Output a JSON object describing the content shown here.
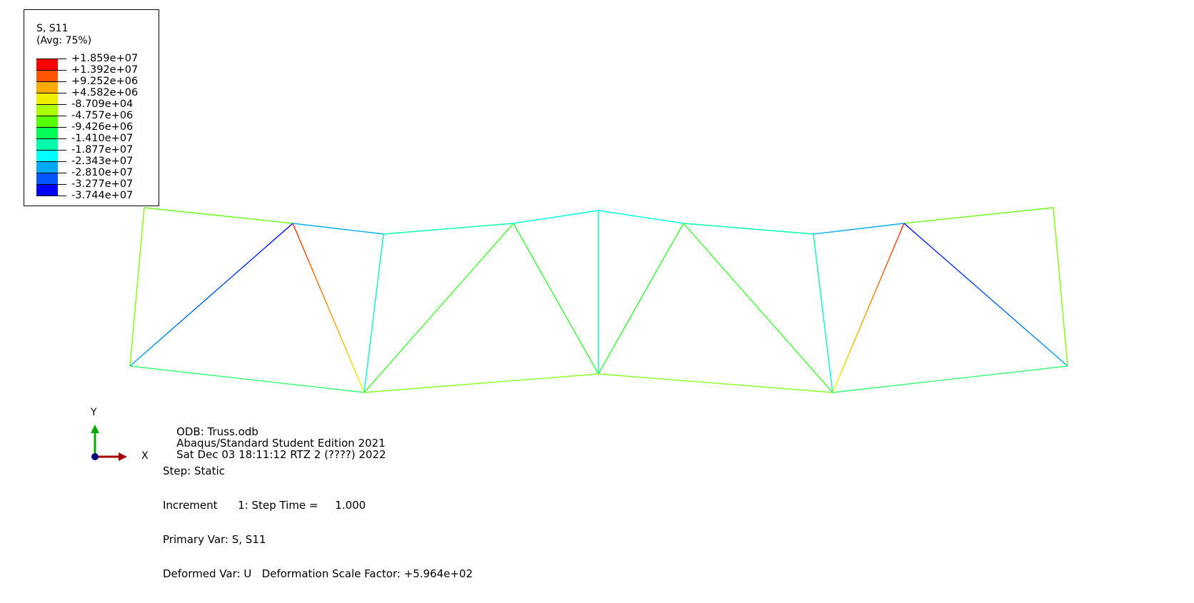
{
  "legend": {
    "title": "S, S11",
    "subtitle": "(Avg: 75%)",
    "labels": [
      "+1.859e+07",
      "+1.392e+07",
      "+9.252e+06",
      "+4.582e+06",
      "-8.709e+04",
      "-4.757e+06",
      "-9.426e+06",
      "-1.410e+07",
      "-1.877e+07",
      "-2.343e+07",
      "-2.810e+07",
      "-3.277e+07",
      "-3.744e+07"
    ],
    "colors": [
      "#ff0000",
      "#ff5500",
      "#ffaa00",
      "#eeee00",
      "#aaff00",
      "#55ff00",
      "#00ff55",
      "#00ffaa",
      "#00ffff",
      "#00aaff",
      "#0055ff",
      "#0000ff"
    ]
  },
  "triad": {
    "y_label": "Y",
    "x_label": "X",
    "colors": {
      "y": "#00aa00",
      "x": "#aa0000",
      "origin": "#000080"
    }
  },
  "info": {
    "odb": "ODB: Truss.odb",
    "edition": "Abaqus/Standard Student Edition 2021",
    "date": "Sat Dec 03 18:11:12 RTZ 2 (????) 2022",
    "step": "Step: Static",
    "increment": "Increment      1: Step Time =     1.000",
    "primary_var": "Primary Var: S, S11",
    "deformed_var": "Deformed Var: U   Deformation Scale Factor: +5.964e+02"
  },
  "truss": {
    "members": [
      {
        "id": "left-vertical",
        "c1": "#7fff00",
        "c2": "#7fff00"
      },
      {
        "id": "top-1",
        "c1": "#66ff11",
        "c2": "#66ff11"
      },
      {
        "id": "diag-1-blue",
        "c1": "#00aaff",
        "c2": "#0000ff"
      },
      {
        "id": "diag-2-red",
        "c1": "#eeff00",
        "c2": "#ff2200"
      },
      {
        "id": "top-2",
        "c1": "#00aaff",
        "c2": "#00aaff"
      },
      {
        "id": "vertical-2",
        "c1": "#00ffaa",
        "c2": "#00ffcc"
      },
      {
        "id": "diag-3",
        "c1": "#44ff33",
        "c2": "#44ff33"
      },
      {
        "id": "top-3",
        "c1": "#00ffaa",
        "c2": "#00ffaa"
      },
      {
        "id": "diag-4",
        "c1": "#33ff33",
        "c2": "#33ff33"
      },
      {
        "id": "top-4",
        "c1": "#00ffdd",
        "c2": "#00ffdd"
      },
      {
        "id": "center-vertical",
        "c1": "#00ffcc",
        "c2": "#00ffcc"
      },
      {
        "id": "top-5",
        "c1": "#00ffdd",
        "c2": "#00ffdd"
      },
      {
        "id": "diag-5",
        "c1": "#33ff33",
        "c2": "#33ff33"
      },
      {
        "id": "top-6",
        "c1": "#00ffaa",
        "c2": "#00ffaa"
      },
      {
        "id": "diag-6",
        "c1": "#44ff33",
        "c2": "#44ff33"
      },
      {
        "id": "vertical-6",
        "c1": "#00ffaa",
        "c2": "#00ffcc"
      },
      {
        "id": "top-7",
        "c1": "#00aaff",
        "c2": "#00aaff"
      },
      {
        "id": "diag-7-red",
        "c1": "#eeff00",
        "c2": "#ff2200"
      },
      {
        "id": "top-8",
        "c1": "#66ff11",
        "c2": "#66ff11"
      },
      {
        "id": "diag-8-blue",
        "c1": "#0000ff",
        "c2": "#00aaff"
      },
      {
        "id": "right-vertical",
        "c1": "#7fff00",
        "c2": "#7fff00"
      },
      {
        "id": "bottom-1",
        "c1": "#33ff77",
        "c2": "#33ff77"
      },
      {
        "id": "bottom-2",
        "c1": "#88ff22",
        "c2": "#88ff22"
      },
      {
        "id": "bottom-3",
        "c1": "#88ff22",
        "c2": "#88ff22"
      },
      {
        "id": "bottom-4",
        "c1": "#33ff77",
        "c2": "#33ff77"
      }
    ]
  }
}
